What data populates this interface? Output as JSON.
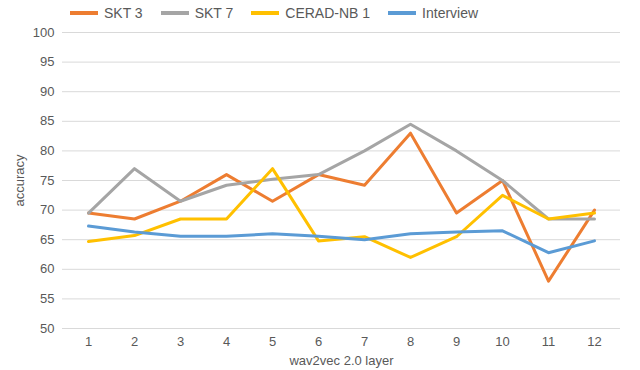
{
  "chart_data": {
    "type": "line",
    "x_label": "wav2vec 2.0 layer",
    "y_label": "accuracy",
    "categories": [
      "1",
      "2",
      "3",
      "4",
      "5",
      "6",
      "7",
      "8",
      "9",
      "10",
      "11",
      "12"
    ],
    "series": [
      {
        "name": "SKT 3",
        "color": "#ed7d31",
        "values": [
          69.5,
          68.5,
          71.5,
          76,
          71.5,
          76,
          74.2,
          83,
          69.5,
          75,
          58,
          70
        ]
      },
      {
        "name": "SKT 7",
        "color": "#a5a5a5",
        "values": [
          69.5,
          77,
          71.5,
          74.2,
          75.2,
          76,
          80,
          84.5,
          80,
          75,
          68.5,
          68.5
        ]
      },
      {
        "name": "CERAD-NB 1",
        "color": "#ffc000",
        "values": [
          64.7,
          65.7,
          68.5,
          68.5,
          77,
          64.8,
          65.5,
          62,
          65.5,
          72.5,
          68.5,
          69.5
        ]
      },
      {
        "name": "Interview",
        "color": "#5b9bd5",
        "values": [
          67.3,
          66.3,
          65.6,
          65.6,
          66,
          65.6,
          65,
          66,
          66.3,
          66.5,
          62.8,
          64.8
        ]
      }
    ],
    "ylim": [
      50,
      100
    ],
    "yticks": [
      50,
      55,
      60,
      65,
      70,
      75,
      80,
      85,
      90,
      95,
      100
    ],
    "grid": true,
    "legend": "top"
  }
}
